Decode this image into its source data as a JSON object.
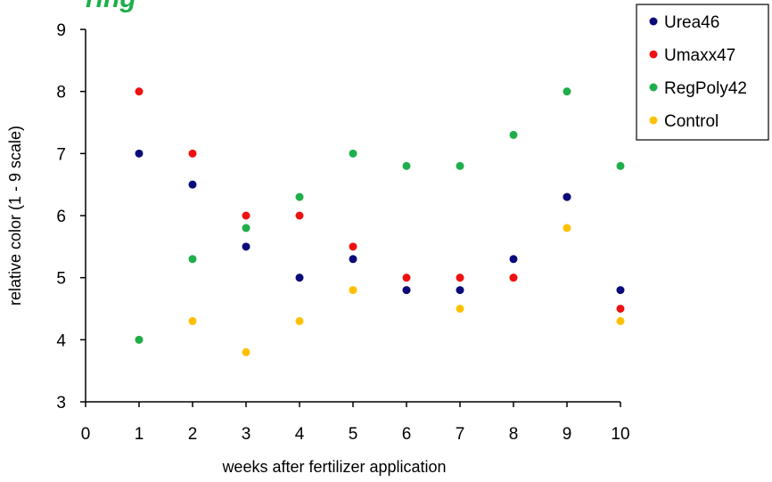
{
  "chart_data": {
    "type": "scatter",
    "title": "",
    "title_visible_fragment": "ring",
    "title_color": "#1fae4b",
    "xlabel": "weeks after fertilizer application",
    "ylabel": "relative color (1 - 9 scale)",
    "xlim": [
      0,
      10
    ],
    "ylim": [
      3,
      9
    ],
    "xticks": [
      "0",
      "1",
      "2",
      "3",
      "4",
      "5",
      "6",
      "7",
      "8",
      "9",
      "10"
    ],
    "yticks": [
      "3",
      "4",
      "5",
      "6",
      "7",
      "8",
      "9"
    ],
    "grid": false,
    "legend_position": "top-right",
    "series": [
      {
        "name": "Urea46",
        "color": "#0a0a7a",
        "x": [
          1,
          2,
          3,
          4,
          5,
          6,
          7,
          8,
          9,
          10
        ],
        "y": [
          7,
          6.5,
          5.5,
          5,
          5.3,
          4.8,
          4.8,
          5.3,
          6.3,
          4.8
        ]
      },
      {
        "name": "Umaxx47",
        "color": "#ee1111",
        "x": [
          1,
          2,
          3,
          4,
          5,
          6,
          7,
          8,
          9,
          10
        ],
        "y": [
          8,
          7,
          6,
          6,
          5.5,
          5,
          5,
          5,
          6.3,
          4.5
        ]
      },
      {
        "name": "RegPoly42",
        "color": "#1fae4b",
        "x": [
          1,
          2,
          3,
          4,
          5,
          6,
          7,
          8,
          9,
          10
        ],
        "y": [
          4,
          5.3,
          5.8,
          6.3,
          7,
          6.8,
          6.8,
          7.3,
          8,
          6.8
        ]
      },
      {
        "name": "Control",
        "color": "#ffc000",
        "x": [
          1,
          2,
          3,
          4,
          5,
          6,
          7,
          8,
          9,
          10
        ],
        "y": [
          4,
          4.3,
          3.8,
          4.3,
          4.8,
          4.8,
          4.5,
          5,
          5.8,
          4.3
        ]
      }
    ]
  }
}
